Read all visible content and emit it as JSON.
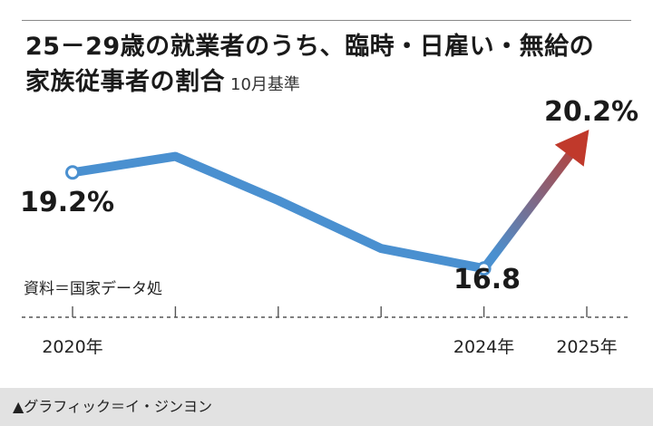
{
  "title_line1": "25－29歳の就業者のうち、臨時・日雇い・無給の",
  "title_line2": "家族従事者の割合",
  "subtitle": "10月基準",
  "source": "資料＝国家データ処",
  "credit": "▲グラフィック＝イ・ジンヨン",
  "colors": {
    "line": "#4a90d0",
    "arrow_end": "#c0392b",
    "axis": "#555555"
  },
  "chart_data": {
    "type": "line",
    "x": [
      2020,
      2021,
      2022,
      2023,
      2024,
      2025
    ],
    "series": [
      {
        "values": [
          19.2,
          19.6,
          18.5,
          17.3,
          16.8,
          20.2
        ]
      }
    ],
    "ylim": [
      15.4,
      21.2
    ],
    "x_tick_labels": [
      {
        "x": 2020,
        "label": "2020年"
      },
      {
        "x": 2024,
        "label": "2024年"
      },
      {
        "x": 2025,
        "label": "2025年"
      }
    ],
    "point_labels": [
      {
        "x": 2020,
        "label": "19.2%"
      },
      {
        "x": 2024,
        "label": "16.8"
      },
      {
        "x": 2025,
        "label": "20.2%"
      }
    ],
    "markers_at": [
      2020,
      2024
    ],
    "highlight_segment": {
      "from": 2024,
      "to": 2025,
      "style": "arrow"
    }
  }
}
